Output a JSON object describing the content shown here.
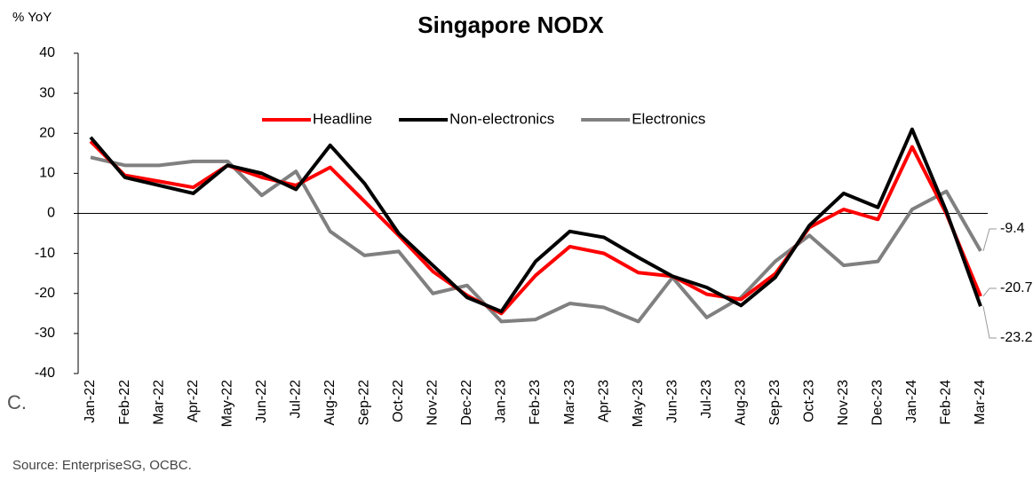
{
  "chart_data": {
    "type": "line",
    "title": "Singapore NODX",
    "y_label": "% YoY",
    "annotations": [
      "C.",
      "Source: EnterpriseSG, OCBC."
    ],
    "categories": [
      "Jan-22",
      "Feb-22",
      "Mar-22",
      "Apr-22",
      "May-22",
      "Jun-22",
      "Jul-22",
      "Aug-22",
      "Sep-22",
      "Oct-22",
      "Nov-22",
      "Dec-22",
      "Jan-23",
      "Feb-23",
      "Mar-23",
      "Apr-23",
      "May-23",
      "Jun-23",
      "Jul-23",
      "Aug-23",
      "Sep-23",
      "Oct-23",
      "Nov-23",
      "Dec-23",
      "Jan-24",
      "Feb-24",
      "Mar-24"
    ],
    "series": [
      {
        "name": "Headline",
        "color": "#ff0000",
        "values": [
          18,
          9.5,
          8,
          6.5,
          12,
          9,
          7,
          11.5,
          3,
          -5.5,
          -14.5,
          -20.5,
          -25,
          -15.5,
          -8.3,
          -10,
          -14.8,
          -15.7,
          -20.2,
          -21.5,
          -15.1,
          -3.5,
          1,
          -1.5,
          16.6,
          -0.1,
          -20.7
        ]
      },
      {
        "name": "Non-electronics",
        "color": "#000000",
        "values": [
          19,
          9,
          7,
          5,
          12,
          10,
          6,
          17,
          7.5,
          -5,
          -13,
          -21,
          -24.5,
          -12,
          -4.5,
          -6,
          -11,
          -15.7,
          -18.5,
          -23,
          -16,
          -3,
          5,
          1.5,
          21,
          0.5,
          -23.2
        ]
      },
      {
        "name": "Electronics",
        "color": "#808080",
        "values": [
          14,
          12,
          12,
          13,
          13,
          4.5,
          10.5,
          -4.5,
          -10.5,
          -9.5,
          -20,
          -18,
          -27,
          -26.5,
          -22.5,
          -23.5,
          -27,
          -16,
          -26,
          -21,
          -12,
          -5.5,
          -13,
          -12,
          1,
          5.5,
          -9.4
        ]
      }
    ],
    "ylim": [
      -40,
      40
    ],
    "yticks": [
      -40,
      -30,
      -20,
      -10,
      0,
      10,
      20,
      30,
      40
    ],
    "grid": false,
    "legend": "top"
  }
}
